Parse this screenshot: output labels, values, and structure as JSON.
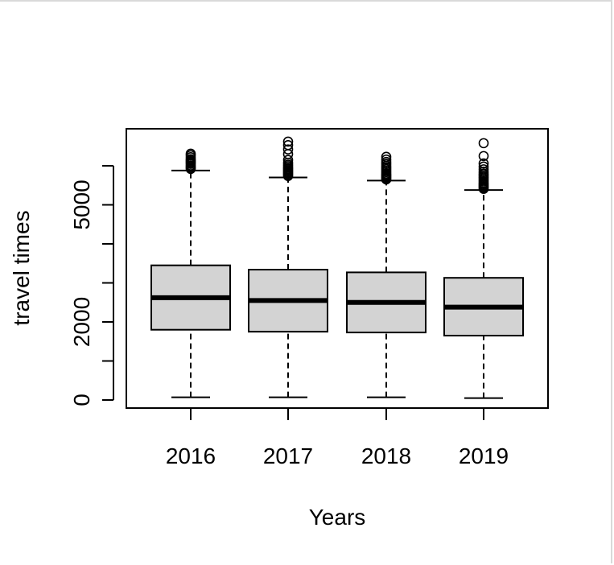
{
  "chart_data": {
    "type": "box",
    "xlabel": "Years",
    "ylabel": "travel times",
    "ylim": [
      -200,
      6800
    ],
    "y_ticks": [
      0,
      1000,
      2000,
      3000,
      4000,
      5000,
      6000
    ],
    "y_tick_labels": [
      "0",
      "",
      "2000",
      "",
      "",
      "5000",
      ""
    ],
    "categories": [
      "2016",
      "2017",
      "2018",
      "2019"
    ],
    "grid": false,
    "boxes": [
      {
        "category": "2016",
        "whisker_low": 70,
        "q1": 1800,
        "median": 2620,
        "q3": 3450,
        "whisker_high": 5880,
        "outliers": [
          5920,
          5950,
          5980,
          6010,
          6050,
          6080,
          6110,
          6140,
          6170,
          6220,
          6270,
          6310
        ]
      },
      {
        "category": "2017",
        "whisker_low": 70,
        "q1": 1750,
        "median": 2550,
        "q3": 3340,
        "whisker_high": 5700,
        "outliers": [
          5740,
          5770,
          5800,
          5830,
          5860,
          5890,
          5920,
          5950,
          5990,
          6030,
          6080,
          6150,
          6300,
          6420,
          6530,
          6620
        ]
      },
      {
        "category": "2018",
        "whisker_low": 70,
        "q1": 1730,
        "median": 2500,
        "q3": 3270,
        "whisker_high": 5620,
        "outliers": [
          5650,
          5680,
          5710,
          5740,
          5770,
          5800,
          5840,
          5880,
          5920,
          5960,
          6000,
          6050,
          6100,
          6160,
          6230
        ]
      },
      {
        "category": "2019",
        "whisker_low": 50,
        "q1": 1650,
        "median": 2380,
        "q3": 3130,
        "whisker_high": 5380,
        "outliers": [
          5410,
          5440,
          5470,
          5500,
          5530,
          5560,
          5600,
          5640,
          5680,
          5720,
          5760,
          5800,
          5850,
          5910,
          5980,
          6060,
          6250,
          6580
        ]
      }
    ]
  }
}
